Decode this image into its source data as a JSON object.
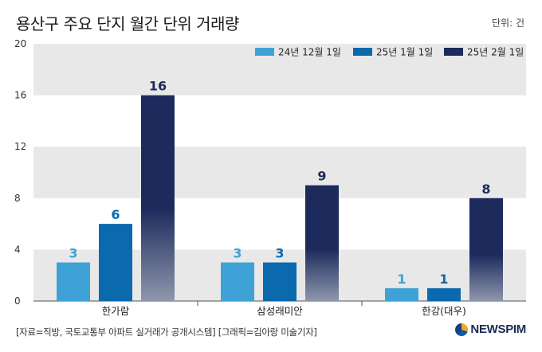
{
  "header": {
    "title": "용산구 주요 단지 월간 단위 거래량",
    "unit": "단위: 건"
  },
  "footer": {
    "source": "[자료=직방, 국토교통부 아파트 실거래가 공개시스템] [그래픽=김아랑 미술기자]",
    "logo": "NEWSPIM"
  },
  "colors": {
    "s1": "#3fa2d6",
    "s2": "#0a6aad",
    "s3": "#1c2b5c",
    "s3_fade": "#8f97ad",
    "band": "#e8e8e8",
    "s1_label": "#3fa2d6",
    "s2_label": "#0a6aad",
    "s3_label": "#1c2b5c"
  },
  "chart_data": {
    "type": "bar",
    "title": "용산구 주요 단지 월간 단위 거래량",
    "xlabel": "",
    "ylabel": "단위: 건",
    "ylim": [
      0,
      20
    ],
    "yticks": [
      0,
      4,
      8,
      12,
      16,
      20
    ],
    "categories": [
      "한가람",
      "삼성래미안",
      "한강(대우)"
    ],
    "legend_position": "top-right",
    "series": [
      {
        "name": "24년 12월 1일",
        "values": [
          3,
          3,
          1
        ]
      },
      {
        "name": "25년 1월 1일",
        "values": [
          6,
          3,
          1
        ]
      },
      {
        "name": "25년 2월 1일",
        "values": [
          16,
          9,
          8
        ]
      }
    ]
  }
}
